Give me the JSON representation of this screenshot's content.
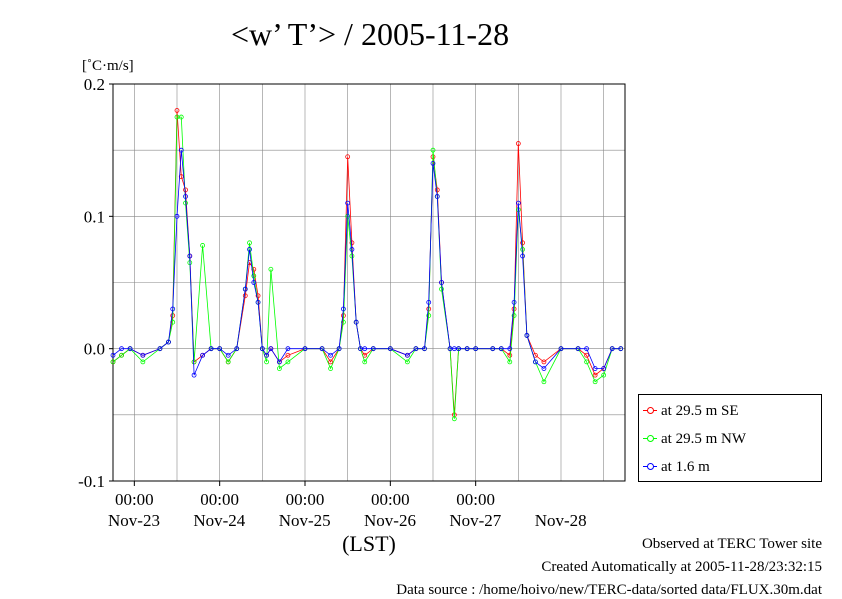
{
  "chart_data": {
    "type": "line",
    "title": "<w’ T’> / 2005-11-28",
    "ylabel": "[˚C·m/s]",
    "xlabel": "(LST)",
    "ylim": [
      -0.1,
      0.2
    ],
    "yticks": [
      "0.2",
      "0.1",
      "0.0",
      "-0.1"
    ],
    "ytick_values": [
      0.2,
      0.1,
      0.0,
      -0.1
    ],
    "xlim": [
      -0.25,
      5.75
    ],
    "x_time_labels": [
      "00:00",
      "00:00",
      "00:00",
      "00:00",
      "00:00"
    ],
    "x_time_positions": [
      0,
      1,
      2,
      3,
      4
    ],
    "x_date_labels": [
      "Nov-23",
      "Nov-24",
      "Nov-25",
      "Nov-26",
      "Nov-27",
      "Nov-28"
    ],
    "x_date_positions": [
      -0.5,
      0.5,
      1.5,
      2.5,
      3.5,
      4.5
    ],
    "grid": true,
    "legend_position": "right-bottom",
    "series": [
      {
        "name": "at 29.5 m SE",
        "color": "#ff0000",
        "x": [
          -0.25,
          -0.15,
          -0.05,
          0.1,
          0.3,
          0.4,
          0.45,
          0.5,
          0.55,
          0.6,
          0.65,
          0.7,
          0.8,
          0.9,
          1.0,
          1.1,
          1.2,
          1.3,
          1.35,
          1.4,
          1.45,
          1.5,
          1.55,
          1.6,
          1.7,
          1.8,
          2.0,
          2.2,
          2.3,
          2.4,
          2.45,
          2.5,
          2.55,
          2.6,
          2.65,
          2.7,
          2.8,
          3.0,
          3.2,
          3.3,
          3.4,
          3.45,
          3.5,
          3.55,
          3.6,
          3.7,
          3.75,
          3.8,
          3.9,
          4.0,
          4.2,
          4.3,
          4.4,
          4.45,
          4.5,
          4.55,
          4.6,
          4.7,
          4.8,
          5.0,
          5.2,
          5.3,
          5.4,
          5.5,
          5.6,
          5.7
        ],
        "y": [
          -0.01,
          -0.005,
          0.0,
          -0.005,
          0.0,
          0.005,
          0.025,
          0.18,
          0.13,
          0.12,
          0.07,
          -0.01,
          -0.005,
          0.0,
          0.0,
          -0.01,
          0.0,
          0.04,
          0.065,
          0.06,
          0.04,
          0.0,
          -0.005,
          0.0,
          -0.01,
          -0.005,
          0.0,
          0.0,
          -0.01,
          0.0,
          0.025,
          0.145,
          0.08,
          0.02,
          0.0,
          -0.005,
          0.0,
          0.0,
          -0.005,
          0.0,
          0.0,
          0.03,
          0.145,
          0.12,
          0.05,
          0.0,
          -0.05,
          0.0,
          0.0,
          0.0,
          0.0,
          0.0,
          -0.005,
          0.03,
          0.155,
          0.08,
          0.01,
          -0.005,
          -0.01,
          0.0,
          0.0,
          -0.005,
          -0.02,
          -0.015,
          0.0,
          0.0
        ]
      },
      {
        "name": "at 29.5 m NW",
        "color": "#00ff00",
        "x": [
          -0.25,
          -0.15,
          -0.05,
          0.1,
          0.3,
          0.4,
          0.45,
          0.5,
          0.55,
          0.6,
          0.65,
          0.7,
          0.8,
          0.9,
          1.0,
          1.1,
          1.2,
          1.3,
          1.35,
          1.4,
          1.45,
          1.5,
          1.55,
          1.6,
          1.7,
          1.8,
          2.0,
          2.2,
          2.3,
          2.4,
          2.45,
          2.5,
          2.55,
          2.6,
          2.65,
          2.7,
          2.8,
          3.0,
          3.2,
          3.3,
          3.4,
          3.45,
          3.5,
          3.55,
          3.6,
          3.7,
          3.75,
          3.8,
          3.9,
          4.0,
          4.2,
          4.3,
          4.4,
          4.45,
          4.5,
          4.55,
          4.6,
          4.7,
          4.8,
          5.0,
          5.2,
          5.3,
          5.4,
          5.5,
          5.6,
          5.7
        ],
        "y": [
          -0.01,
          -0.005,
          0.0,
          -0.01,
          0.0,
          0.005,
          0.02,
          0.175,
          0.175,
          0.11,
          0.065,
          -0.01,
          0.078,
          0.0,
          0.0,
          -0.01,
          0.0,
          0.045,
          0.08,
          0.055,
          0.035,
          0.0,
          -0.01,
          0.06,
          -0.015,
          -0.01,
          0.0,
          0.0,
          -0.015,
          0.0,
          0.02,
          0.1,
          0.07,
          0.02,
          0.0,
          -0.01,
          0.0,
          0.0,
          -0.01,
          0.0,
          0.0,
          0.025,
          0.15,
          0.115,
          0.045,
          0.0,
          -0.053,
          0.0,
          0.0,
          0.0,
          0.0,
          0.0,
          -0.01,
          0.025,
          0.105,
          0.075,
          0.01,
          -0.01,
          -0.025,
          0.0,
          0.0,
          -0.01,
          -0.025,
          -0.02,
          0.0,
          0.0
        ]
      },
      {
        "name": "at 1.6 m",
        "color": "#0000ff",
        "x": [
          -0.25,
          -0.15,
          -0.05,
          0.1,
          0.3,
          0.4,
          0.45,
          0.5,
          0.55,
          0.6,
          0.65,
          0.7,
          0.8,
          0.9,
          1.0,
          1.1,
          1.2,
          1.3,
          1.35,
          1.4,
          1.45,
          1.5,
          1.55,
          1.6,
          1.7,
          1.8,
          2.0,
          2.2,
          2.3,
          2.4,
          2.45,
          2.5,
          2.55,
          2.6,
          2.65,
          2.7,
          2.8,
          3.0,
          3.2,
          3.3,
          3.4,
          3.45,
          3.5,
          3.55,
          3.6,
          3.7,
          3.75,
          3.8,
          3.9,
          4.0,
          4.2,
          4.3,
          4.4,
          4.45,
          4.5,
          4.55,
          4.6,
          4.7,
          4.8,
          5.0,
          5.2,
          5.3,
          5.4,
          5.5,
          5.6,
          5.7
        ],
        "y": [
          -0.005,
          0.0,
          0.0,
          -0.005,
          0.0,
          0.005,
          0.03,
          0.1,
          0.15,
          0.115,
          0.07,
          -0.02,
          -0.005,
          0.0,
          0.0,
          -0.005,
          0.0,
          0.045,
          0.075,
          0.05,
          0.035,
          0.0,
          -0.005,
          0.0,
          -0.01,
          0.0,
          0.0,
          0.0,
          -0.005,
          0.0,
          0.03,
          0.11,
          0.075,
          0.02,
          0.0,
          0.0,
          0.0,
          0.0,
          -0.005,
          0.0,
          0.0,
          0.035,
          0.14,
          0.115,
          0.05,
          0.0,
          0.0,
          0.0,
          0.0,
          0.0,
          0.0,
          0.0,
          0.0,
          0.035,
          0.11,
          0.07,
          0.01,
          -0.01,
          -0.015,
          0.0,
          0.0,
          0.0,
          -0.015,
          -0.015,
          0.0,
          0.0
        ]
      }
    ]
  },
  "footer": {
    "line1": "Observed at TERC Tower site",
    "line2": "Created Automatically at 2005-11-28/23:32:15",
    "line3": "Data source : /home/hoivo/new/TERC-data/sorted  data/FLUX.30m.dat"
  }
}
